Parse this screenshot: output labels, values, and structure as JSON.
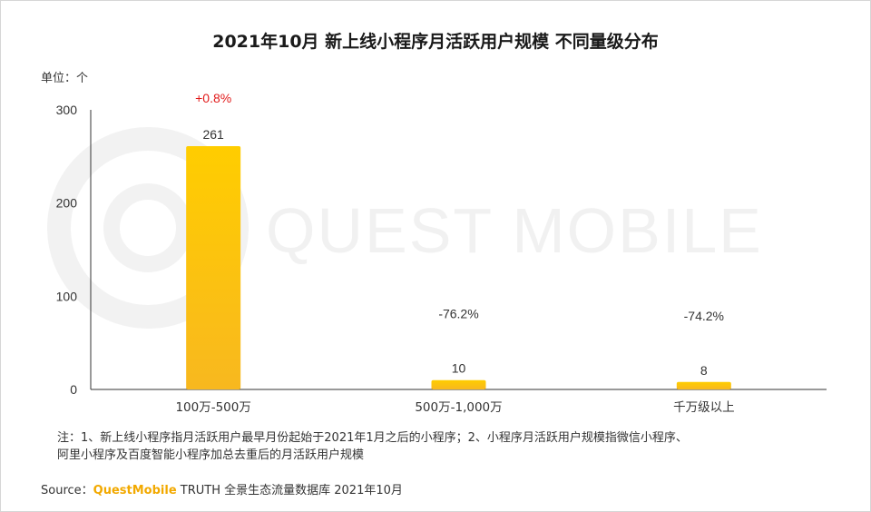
{
  "title": "2021年10月 新上线小程序月活跃用户规模 不同量级分布",
  "unit_label": "单位：个",
  "watermark_text": "QUEST MOBILE",
  "chart_data": {
    "type": "bar",
    "categories": [
      "100万-500万",
      "500万-1,000万",
      "千万级以上"
    ],
    "values": [
      261,
      10,
      8
    ],
    "change_labels": [
      "+0.8%",
      "-76.2%",
      "-74.2%"
    ],
    "yticks": [
      0,
      100,
      200,
      300
    ],
    "ylim": [
      0,
      300
    ],
    "xlabel": "",
    "ylabel": "",
    "colors": {
      "bar_top": "#ffcd00",
      "bar_bottom": "#f8b81f",
      "positive_change": "#e11a1a",
      "negative_change": "#333333"
    }
  },
  "note": {
    "line1": "注：1、新上线小程序指月活跃用户最早月份起始于2021年1月之后的小程序；2、小程序月活跃用户规模指微信小程序、",
    "line2": "阿里小程序及百度智能小程序加总去重后的月活跃用户规模"
  },
  "source": {
    "prefix": "Source：",
    "brand": "QuestMobile",
    "suffix": "TRUTH 全景生态流量数据库 2021年10月"
  }
}
